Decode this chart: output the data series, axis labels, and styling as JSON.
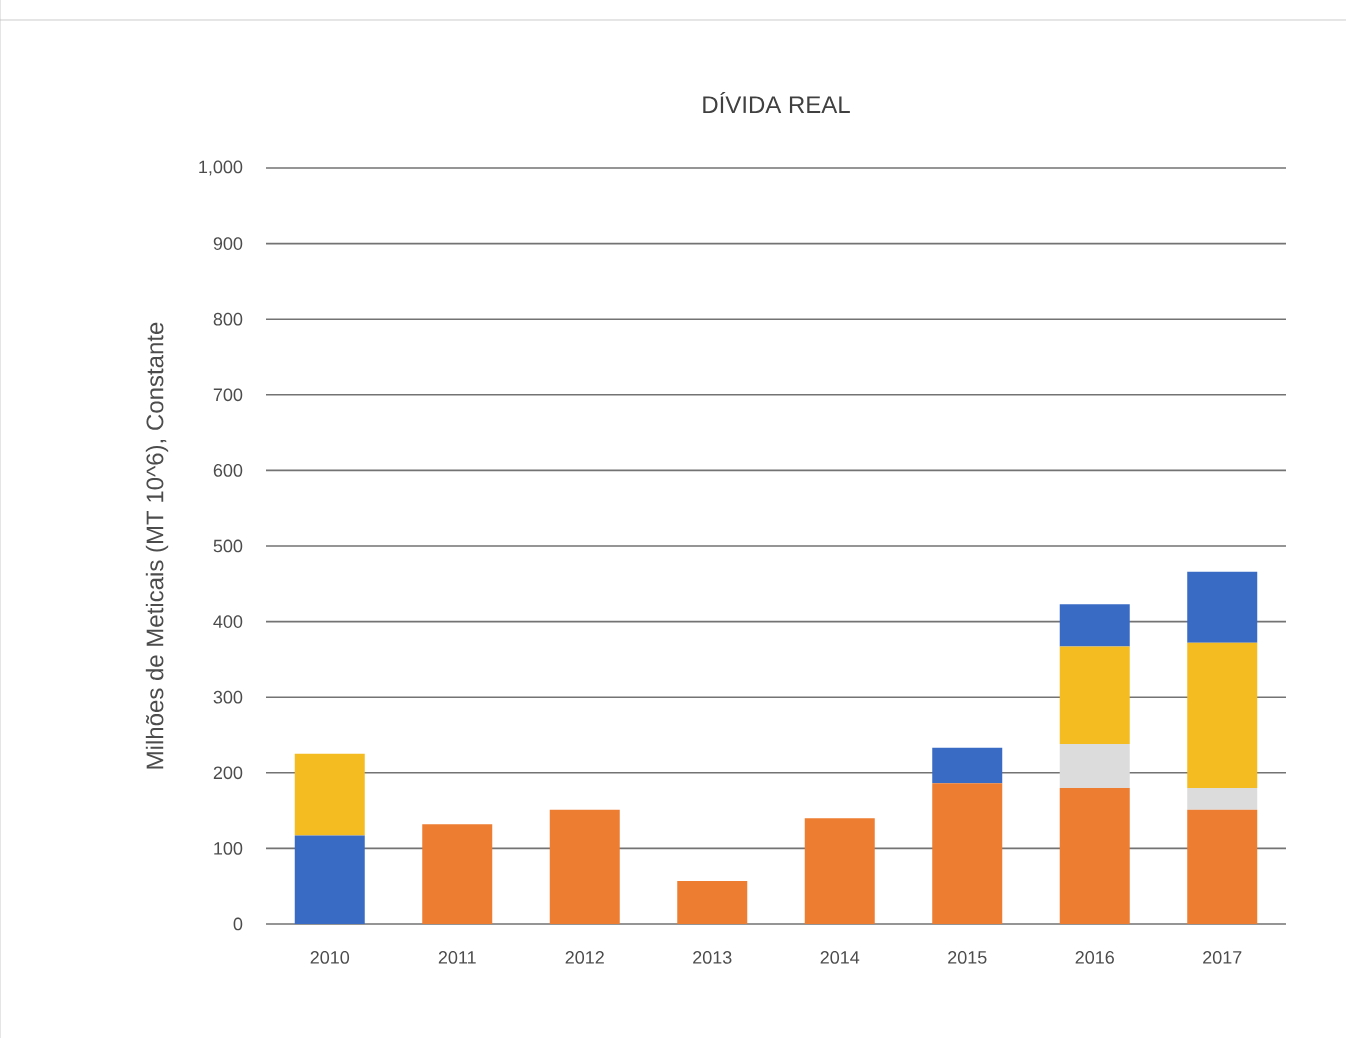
{
  "chart_data": {
    "type": "bar",
    "stacked": true,
    "title": "DÍVIDA REAL",
    "ylabel": "Milhões de Meticais (MT 10^6), Constante",
    "categories": [
      "2010",
      "2011",
      "2012",
      "2013",
      "2014",
      "2015",
      "2016",
      "2017"
    ],
    "series": [
      {
        "color": "#3a6bc4",
        "values": [
          117,
          null,
          null,
          null,
          null,
          null,
          null,
          null
        ]
      },
      {
        "color": "#ed7d31",
        "values": [
          null,
          132,
          151,
          57,
          140,
          186,
          180,
          151
        ]
      },
      {
        "color": "#dcdcdc",
        "values": [
          null,
          null,
          null,
          null,
          null,
          null,
          58,
          29
        ]
      },
      {
        "color": "#f5bc22",
        "values": [
          108,
          null,
          null,
          null,
          null,
          null,
          129,
          192
        ]
      },
      {
        "color": "#3a6bc4",
        "values": [
          null,
          null,
          null,
          null,
          null,
          47,
          56,
          94
        ]
      }
    ],
    "ylim": [
      0,
      1000
    ],
    "yticks": [
      0,
      100,
      200,
      300,
      400,
      500,
      600,
      700,
      800,
      900,
      {
        "value": 1000,
        "label": "1,000"
      }
    ],
    "grid": "y"
  }
}
